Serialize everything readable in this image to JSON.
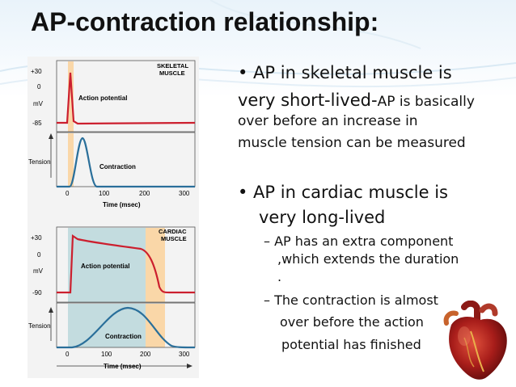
{
  "title": "AP-contraction relationship:",
  "figure": {
    "skeletal": {
      "label_line1": "SKELETAL",
      "label_line2": "MUSCLE",
      "y_ticks": [
        "+30",
        "0",
        "mV",
        "-85"
      ],
      "ap_label": "Action potential",
      "tension_label": "Tension",
      "contraction_label": "Contraction",
      "x_ticks": [
        "0",
        "100",
        "200",
        "300"
      ],
      "x_axis_label": "Time (msec)"
    },
    "cardiac": {
      "label_line1": "CARDIAC",
      "label_line2": "MUSCLE",
      "y_ticks": [
        "+30",
        "0",
        "mV",
        "-90"
      ],
      "ap_label": "Action potential",
      "tension_label": "Tension",
      "contraction_label": "Contraction",
      "x_ticks": [
        "0",
        "100",
        "200",
        "300"
      ],
      "x_axis_label": "Time (msec)"
    },
    "colors": {
      "ap_curve": "#cc1f2e",
      "contraction_curve": "#2a6f9a",
      "refractory_band": "#fad7a8",
      "shading": "#c3dcdf"
    }
  },
  "bullets": {
    "b1_line1": "• AP in skeletal muscle is",
    "b1_line2a": "very short-lived-",
    "b1_line2b": "AP is basically",
    "b1_line3": "over before an increase in",
    "b1_line4": "muscle tension can be measured",
    "b2_line1": "• AP in cardiac muscle is",
    "b2_line2": "very long-lived",
    "s1_line1": "– AP has an extra component",
    "s1_line2": ",which extends the duration",
    "s1_line3": ".",
    "s2_line1": "– The contraction is almost",
    "s2_line2": "over before the action",
    "s2_line3": "potential has finished"
  },
  "decor": {
    "heart": "heart-illustration"
  }
}
